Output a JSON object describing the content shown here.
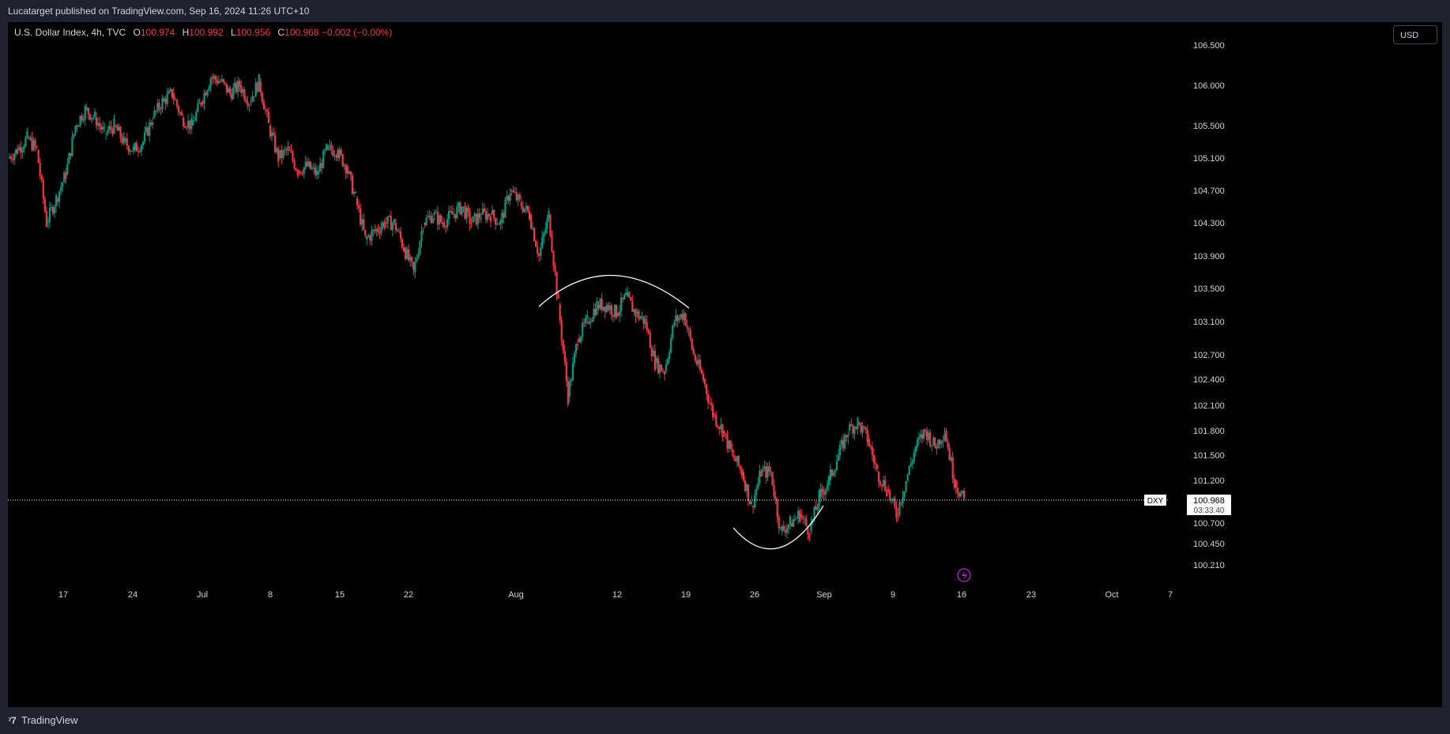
{
  "header": {
    "published": "Lucatarget published on TradingView.com, Sep 16, 2024 11:26 UTC+10"
  },
  "legend": {
    "symbol": "U.S. Dollar Index, 4h, TVC",
    "o_label": "O",
    "o": "100.974",
    "h_label": "H",
    "h": "100.992",
    "l_label": "L",
    "l": "100.956",
    "c_label": "C",
    "c": "100.968",
    "change": "−0.002 (−0.00%)"
  },
  "currency": "USD",
  "footer": {
    "brand": "TradingView"
  },
  "chart_data": {
    "type": "line",
    "yticks": [
      "106.500",
      "106.000",
      "105.500",
      "105.100",
      "104.700",
      "104.300",
      "103.900",
      "103.500",
      "103.100",
      "102.700",
      "102.400",
      "102.100",
      "101.800",
      "101.500",
      "101.200",
      "100.700",
      "100.450",
      "100.210"
    ],
    "xticks": [
      "17",
      "24",
      "Jul",
      "8",
      "15",
      "22",
      "Aug",
      "12",
      "19",
      "26",
      "Sep",
      "9",
      "16",
      "23",
      "Oct",
      "7"
    ],
    "last_price": {
      "symbol": "DXY",
      "price": "100.968",
      "countdown": "03:33:40"
    },
    "colors": {
      "up": "#089981",
      "down": "#f23645",
      "annotation": "#ffffff",
      "price_line": "#ffffff"
    },
    "path": [
      [
        0,
        105.1
      ],
      [
        1,
        105.2
      ],
      [
        2,
        105.35
      ],
      [
        3,
        105.2
      ],
      [
        4,
        104.3
      ],
      [
        5,
        104.6
      ],
      [
        6,
        104.9
      ],
      [
        7,
        105.5
      ],
      [
        8,
        105.7
      ],
      [
        9,
        105.6
      ],
      [
        10,
        105.4
      ],
      [
        11,
        105.5
      ],
      [
        12,
        105.3
      ],
      [
        13,
        105.2
      ],
      [
        14,
        105.3
      ],
      [
        15,
        105.6
      ],
      [
        16,
        105.8
      ],
      [
        17,
        105.9
      ],
      [
        18,
        105.6
      ],
      [
        19,
        105.5
      ],
      [
        20,
        105.8
      ],
      [
        21,
        106.1
      ],
      [
        22,
        106.05
      ],
      [
        23,
        105.9
      ],
      [
        24,
        106.0
      ],
      [
        25,
        105.8
      ],
      [
        26,
        106.05
      ],
      [
        27,
        105.5
      ],
      [
        28,
        105.1
      ],
      [
        29,
        105.2
      ],
      [
        30,
        104.95
      ],
      [
        31,
        105.0
      ],
      [
        32,
        104.9
      ],
      [
        33,
        105.2
      ],
      [
        34,
        105.2
      ],
      [
        35,
        105.0
      ],
      [
        36,
        104.6
      ],
      [
        37,
        104.1
      ],
      [
        38,
        104.2
      ],
      [
        39,
        104.3
      ],
      [
        40,
        104.3
      ],
      [
        41,
        104.0
      ],
      [
        42,
        103.7
      ],
      [
        43,
        104.3
      ],
      [
        44,
        104.4
      ],
      [
        45,
        104.3
      ],
      [
        46,
        104.4
      ],
      [
        47,
        104.5
      ],
      [
        48,
        104.3
      ],
      [
        49,
        104.4
      ],
      [
        50,
        104.4
      ],
      [
        51,
        104.3
      ],
      [
        52,
        104.7
      ],
      [
        53,
        104.55
      ],
      [
        54,
        104.4
      ],
      [
        55,
        103.9
      ],
      [
        56,
        104.4
      ],
      [
        57,
        103.3
      ],
      [
        58,
        102.2
      ],
      [
        59,
        102.9
      ],
      [
        60,
        103.1
      ],
      [
        61,
        103.3
      ],
      [
        62,
        103.3
      ],
      [
        63,
        103.2
      ],
      [
        64,
        103.4
      ],
      [
        65,
        103.2
      ],
      [
        66,
        103.1
      ],
      [
        67,
        102.6
      ],
      [
        68,
        102.5
      ],
      [
        69,
        103.1
      ],
      [
        70,
        103.2
      ],
      [
        71,
        102.7
      ],
      [
        72,
        102.4
      ],
      [
        73,
        102.0
      ],
      [
        74,
        101.8
      ],
      [
        75,
        101.5
      ],
      [
        76,
        101.3
      ],
      [
        77,
        100.9
      ],
      [
        78,
        101.3
      ],
      [
        79,
        101.3
      ],
      [
        80,
        100.6
      ],
      [
        81,
        100.7
      ],
      [
        82,
        100.8
      ],
      [
        83,
        100.6
      ],
      [
        84,
        101.0
      ],
      [
        85,
        101.2
      ],
      [
        86,
        101.5
      ],
      [
        87,
        101.8
      ],
      [
        88,
        101.9
      ],
      [
        89,
        101.7
      ],
      [
        90,
        101.3
      ],
      [
        91,
        101.1
      ],
      [
        92,
        100.8
      ],
      [
        93,
        101.2
      ],
      [
        94,
        101.6
      ],
      [
        95,
        101.8
      ],
      [
        96,
        101.6
      ],
      [
        97,
        101.8
      ],
      [
        98,
        101.2
      ],
      [
        99,
        100.95
      ]
    ]
  }
}
